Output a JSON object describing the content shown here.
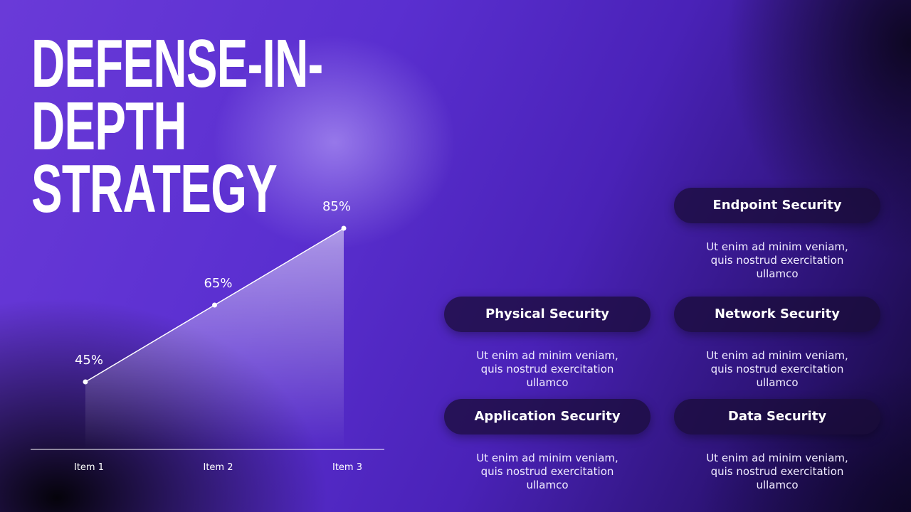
{
  "title": "DEFENSE-IN-DEPTH STRATEGY",
  "chart_data": {
    "type": "area",
    "categories": [
      "Item 1",
      "Item 2",
      "Item 3"
    ],
    "values": [
      45,
      65,
      85
    ],
    "value_labels": [
      "45%",
      "65%",
      "85%"
    ],
    "color": "#ffffff"
  },
  "cards": [
    {
      "title": "Endpoint Security",
      "text": "Ut enim ad minim veniam, quis nostrud exercitation ullamco"
    },
    {
      "title": "Physical Security",
      "text": "Ut enim ad minim veniam, quis nostrud exercitation ullamco"
    },
    {
      "title": "Network Security",
      "text": "Ut enim ad minim veniam, quis nostrud exercitation ullamco"
    },
    {
      "title": "Application Security",
      "text": "Ut enim ad minim veniam, quis nostrud exercitation ullamco"
    },
    {
      "title": "Data Security",
      "text": "Ut enim ad minim veniam, quis nostrud exercitation ullamco"
    }
  ]
}
